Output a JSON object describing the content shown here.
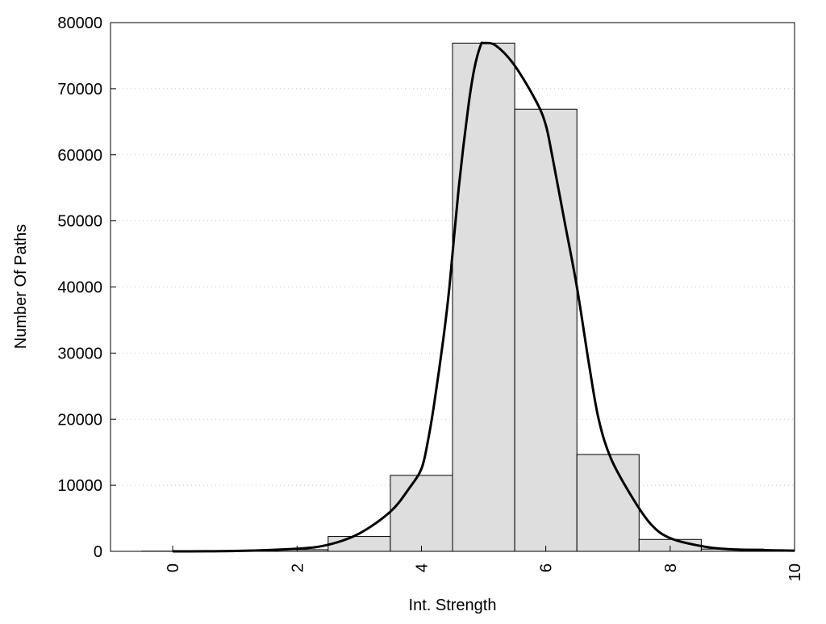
{
  "chart_data": {
    "type": "bar",
    "title": "",
    "xlabel": "Int. Strength",
    "ylabel": "Number Of Paths",
    "xlim": [
      -1,
      10
    ],
    "ylim": [
      0,
      80000
    ],
    "xticks": [
      0,
      2,
      4,
      6,
      8,
      10
    ],
    "yticks": [
      0,
      10000,
      20000,
      30000,
      40000,
      50000,
      60000,
      70000,
      80000
    ],
    "grid": "horizontal dotted",
    "bar_color": "#dedede",
    "bars": {
      "x": [
        0,
        1,
        2,
        3,
        4,
        5,
        6,
        7,
        8,
        9,
        10
      ],
      "values": [
        30,
        60,
        250,
        2250,
        11500,
        76900,
        66900,
        14650,
        1800,
        350,
        100
      ]
    },
    "curve": {
      "type": "line",
      "color": "#000000",
      "x": [
        0,
        1,
        2,
        2.5,
        3,
        3.5,
        3.8,
        4,
        4.1,
        4.2,
        4.35,
        4.45,
        4.6,
        4.75,
        4.85,
        4.95,
        5.0,
        5.2,
        5.5,
        5.85,
        6.0,
        6.1,
        6.3,
        6.5,
        6.7,
        6.85,
        7.05,
        7.4,
        7.7,
        8,
        8.5,
        9,
        10
      ],
      "y": [
        0,
        60,
        400,
        1000,
        2700,
        6000,
        9500,
        12500,
        16500,
        22000,
        32000,
        40000,
        55000,
        67000,
        73000,
        76500,
        76900,
        76500,
        73500,
        68000,
        64500,
        60000,
        50000,
        40000,
        28000,
        20000,
        14000,
        8000,
        4000,
        2000,
        800,
        300,
        100
      ]
    }
  }
}
